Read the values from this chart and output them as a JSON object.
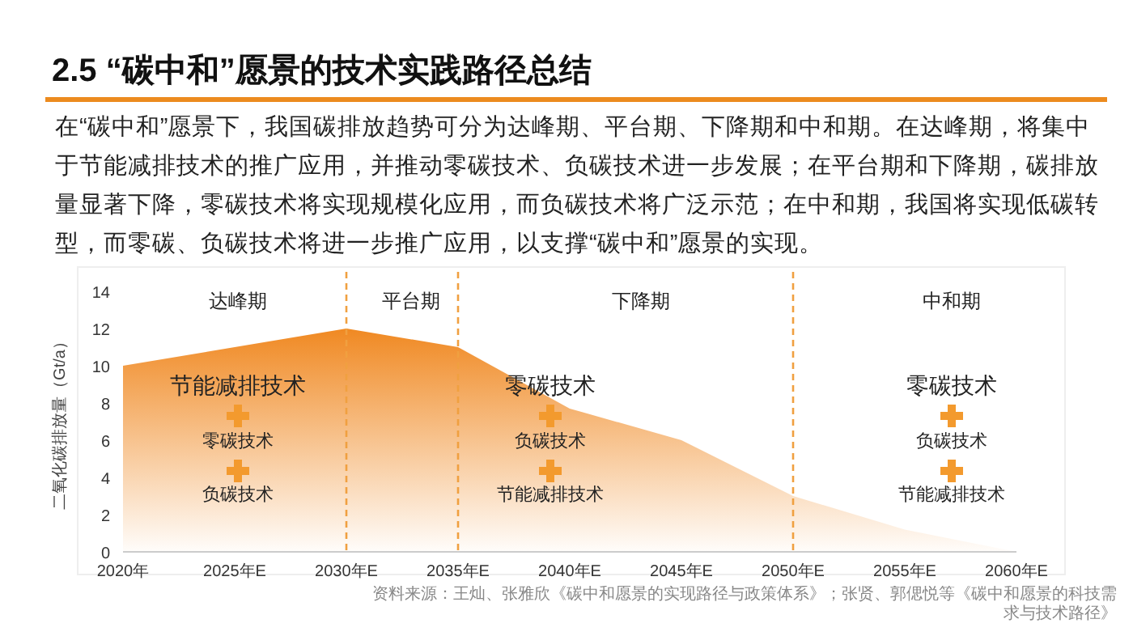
{
  "chart_data": {
    "type": "area",
    "title": "2.5 “碳中和”愿景的技术实践路径总结",
    "subtitle": "在“碳中和”愿景下，我国碳排放趋势可分为达峰期、平台期、下降期和中和期。在达峰期，将集中于节能减排技术的推广应用，并推动零碳技术、负碳技术进一步发展；在平台期和下降期，碳排放量显著下降，零碳技术将实现规模化应用，而负碳技术将广泛示范；在中和期，我国将实现低碳转型，而零碳、负碳技术将进一步推广应用，以支撑“碳中和”愿景的实现。",
    "ylabel": "二氧化碳排放量（Gt/a）",
    "categories": [
      "2020年",
      "2025年E",
      "2030年E",
      "2035年E",
      "2040年E",
      "2045年E",
      "2050年E",
      "2055年E",
      "2060年E"
    ],
    "series": [
      {
        "color": "#f08a24",
        "values": [
          10,
          11,
          12,
          11,
          7.7,
          6.0,
          3.0,
          1.2,
          0
        ]
      }
    ],
    "ylim": [
      0,
      14
    ],
    "yticks": [
      0,
      2,
      4,
      6,
      8,
      10,
      12,
      14
    ],
    "grid": false,
    "ref_lines": [
      {
        "axis": "x",
        "value": "2030年E",
        "color": "#f0a040",
        "line_style": "dashed"
      },
      {
        "axis": "x",
        "value": "2035年E",
        "color": "#f0a040",
        "line_style": "dashed"
      },
      {
        "axis": "x",
        "value": "2050年E",
        "color": "#f0a040",
        "line_style": "dashed"
      }
    ],
    "annotations": [
      "达峰期",
      "平台期",
      "下降期",
      "中和期",
      "节能减排技术",
      "零碳技术",
      "负碳技术",
      "零碳技术",
      "负碳技术",
      "节能减排技术",
      "零碳技术",
      "负碳技术",
      "节能减排技术",
      "资料来源：王灿、张雅欣《碳中和愿景的实现路径与政策体系》；张贤、郭偲悦等《碳中和愿景的科技需求与技术路径》"
    ]
  }
}
